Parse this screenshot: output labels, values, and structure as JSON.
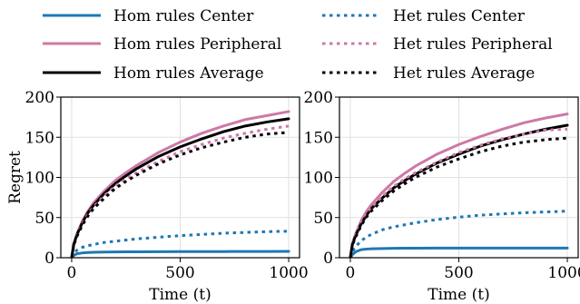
{
  "chart_data": [
    {
      "type": "line",
      "panel": "left",
      "xlabel": "Time (t)",
      "ylabel": "Regret",
      "xlim": [
        -50,
        1050
      ],
      "ylim": [
        0,
        200
      ],
      "xticks": [
        "0",
        "500",
        "1000"
      ],
      "yticks": [
        "0",
        "50",
        "100",
        "150",
        "200"
      ],
      "grid": true,
      "x": [
        0,
        10,
        25,
        50,
        75,
        100,
        150,
        200,
        250,
        300,
        400,
        500,
        600,
        700,
        800,
        900,
        1000
      ],
      "series": [
        {
          "name": "Hom rules Center",
          "style": "solid",
          "color": "#1f77b4",
          "values": [
            0,
            3,
            5,
            6,
            6.5,
            6.8,
            7,
            7.2,
            7.3,
            7.4,
            7.5,
            7.6,
            7.7,
            7.7,
            7.8,
            7.8,
            7.9
          ]
        },
        {
          "name": "Hom rules Peripheral",
          "style": "solid",
          "color": "#cc79a7",
          "values": [
            0,
            18,
            30,
            46,
            58,
            68,
            83,
            96,
            106,
            115,
            131,
            144,
            155,
            164,
            172,
            177,
            182
          ]
        },
        {
          "name": "Hom rules Average",
          "style": "solid",
          "color": "#000000",
          "values": [
            0,
            17,
            29,
            44,
            56,
            65,
            80,
            92,
            102,
            111,
            126,
            138,
            148,
            157,
            164,
            169,
            173
          ]
        },
        {
          "name": "Het rules Center",
          "style": "dotted",
          "color": "#1f77b4",
          "values": [
            0,
            6,
            9.5,
            13,
            15,
            16.5,
            19,
            20.5,
            22,
            23.5,
            25.5,
            27.5,
            29,
            30.5,
            31.5,
            32.5,
            33
          ]
        },
        {
          "name": "Het rules Peripheral",
          "style": "dotted",
          "color": "#cc79a7",
          "values": [
            0,
            17,
            28,
            43,
            54,
            63,
            77,
            89,
            98,
            106,
            120,
            132,
            141,
            149,
            155,
            160,
            164
          ]
        },
        {
          "name": "Het rules Average",
          "style": "dotted",
          "color": "#000000",
          "values": [
            0,
            16,
            27,
            41,
            52,
            61,
            74,
            86,
            95,
            103,
            117,
            128,
            137,
            144,
            150,
            154,
            156
          ]
        }
      ]
    },
    {
      "type": "line",
      "panel": "right",
      "xlabel": "Time (t)",
      "ylabel": "",
      "xlim": [
        -50,
        1050
      ],
      "ylim": [
        0,
        200
      ],
      "xticks": [
        "0",
        "500",
        "1000"
      ],
      "yticks": [
        "0",
        "50",
        "100",
        "150",
        "200"
      ],
      "grid": true,
      "x": [
        0,
        10,
        25,
        50,
        75,
        100,
        150,
        200,
        250,
        300,
        400,
        500,
        600,
        700,
        800,
        900,
        1000
      ],
      "series": [
        {
          "name": "Hom rules Center",
          "style": "solid",
          "color": "#1f77b4",
          "values": [
            0,
            4,
            7.5,
            10,
            10.8,
            11.2,
            11.5,
            11.7,
            11.8,
            11.9,
            12,
            12,
            12,
            12,
            12,
            12,
            12
          ]
        },
        {
          "name": "Hom rules Peripheral",
          "style": "solid",
          "color": "#cc79a7",
          "values": [
            0,
            18,
            30,
            46,
            58,
            67,
            82,
            95,
            105,
            114,
            129,
            141,
            151,
            160,
            168,
            174,
            179
          ]
        },
        {
          "name": "Hom rules Average",
          "style": "solid",
          "color": "#000000",
          "values": [
            0,
            17,
            28,
            42,
            53,
            62,
            75,
            87,
            96,
            104,
            118,
            129,
            139,
            147,
            154,
            160,
            165
          ]
        },
        {
          "name": "Het rules Center",
          "style": "dotted",
          "color": "#1f77b4",
          "values": [
            0,
            8,
            14,
            21,
            26,
            29.5,
            35,
            38.5,
            41,
            43.5,
            47.5,
            50.5,
            53,
            54.5,
            56,
            57,
            58
          ]
        },
        {
          "name": "Het rules Peripheral",
          "style": "dotted",
          "color": "#cc79a7",
          "values": [
            0,
            17,
            28,
            43,
            54,
            63,
            77,
            89,
            98,
            106,
            119,
            131,
            140,
            148,
            154,
            159,
            160
          ]
        },
        {
          "name": "Het rules Average",
          "style": "dotted",
          "color": "#000000",
          "values": [
            0,
            16,
            26,
            40,
            51,
            59,
            72,
            83,
            92,
            100,
            113,
            123,
            132,
            139,
            144,
            147,
            149
          ]
        }
      ]
    }
  ]
}
